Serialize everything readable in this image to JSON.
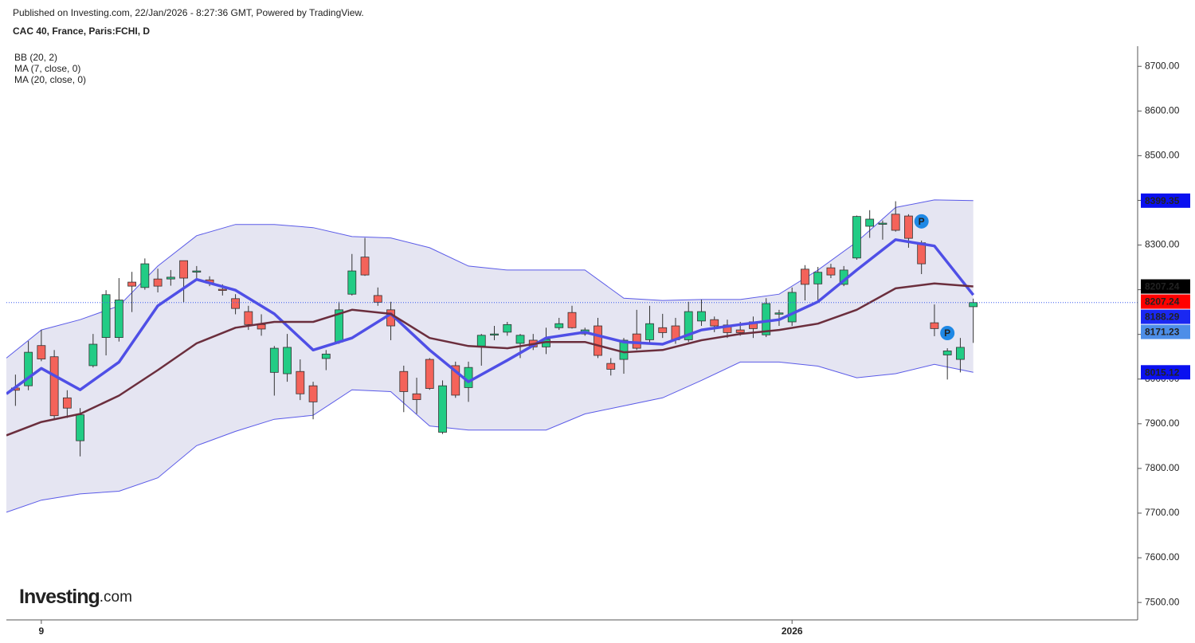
{
  "chart_data": {
    "type": "candlestick",
    "subtitle": "Published on Investing.com, 22/Jan/2026 - 8:27:36 GMT, Powered by TradingView.",
    "title": "CAC 40, France, Paris:FCHI, D",
    "up_color": "#22cc85",
    "down_color": "#f4635a",
    "xlim": [
      -0.7,
      86.7
    ],
    "ylim": [
      7461,
      8745
    ],
    "yticks": [
      {
        "value": 7500,
        "label": "7500.00"
      },
      {
        "value": 7600,
        "label": "7600.00"
      },
      {
        "value": 7700,
        "label": "7700.00"
      },
      {
        "value": 7800,
        "label": "7800.00"
      },
      {
        "value": 7900,
        "label": "7900.00"
      },
      {
        "value": 8000,
        "label": "8000.00"
      },
      {
        "value": 8100,
        "label": "8100.00"
      },
      {
        "value": 8200,
        "label": "8200.00"
      },
      {
        "value": 8300,
        "label": "8300.00"
      },
      {
        "value": 8400,
        "label": "8400.00"
      },
      {
        "value": 8500,
        "label": "8500.00"
      },
      {
        "value": 8600,
        "label": "8600.00"
      },
      {
        "value": 8700,
        "label": "8700.00"
      }
    ],
    "xticks": [
      {
        "value": 2,
        "label": "9"
      },
      {
        "value": 60,
        "label": "2026"
      }
    ],
    "open": [
      7980,
      7985,
      8075,
      8050,
      7958,
      7862,
      8030,
      8093,
      8093,
      8217,
      8205,
      8224,
      8224,
      8265,
      8240,
      8222,
      8201,
      8180,
      8151,
      8122,
      8015,
      8012,
      8017,
      7985,
      8046,
      8083,
      8190,
      8273,
      8187,
      8155,
      8017,
      7967,
      8044,
      7881,
      8030,
      7981,
      8074,
      8100,
      8105,
      8080,
      8087,
      8072,
      8115,
      8149,
      8101,
      8119,
      8035,
      8044,
      8101,
      8088,
      8115,
      8119,
      8088,
      8130,
      8133,
      8121,
      8110,
      8128,
      8099,
      8146,
      8128,
      8246,
      8213,
      8249,
      8212,
      8271,
      8342,
      8347,
      8369,
      8365,
      8305,
      8126,
      8054,
      8044,
      8162
    ],
    "high": [
      8010,
      8085,
      8110,
      8065,
      7975,
      7935,
      8101,
      8199,
      8226,
      8240,
      8270,
      8247,
      8244,
      8265,
      8253,
      8230,
      8212,
      8190,
      8164,
      8145,
      8074,
      8101,
      8044,
      7994,
      8065,
      8173,
      8280,
      8316,
      8205,
      8173,
      8030,
      8003,
      8047,
      7997,
      8039,
      8039,
      8101,
      8119,
      8128,
      8101,
      8101,
      8115,
      8137,
      8164,
      8115,
      8137,
      8047,
      8092,
      8155,
      8164,
      8146,
      8137,
      8173,
      8178,
      8140,
      8133,
      8128,
      8140,
      8181,
      8155,
      8205,
      8255,
      8251,
      8258,
      8253,
      8366,
      8378,
      8355,
      8398,
      8369,
      8310,
      8167,
      8069,
      8092,
      8180
    ],
    "low": [
      7940,
      7975,
      8040,
      7908,
      7913,
      7827,
      8026,
      8053,
      8084,
      8150,
      8200,
      8194,
      8209,
      8172,
      8226,
      8208,
      8187,
      8145,
      8110,
      8097,
      7963,
      7994,
      7953,
      7910,
      8020,
      8079,
      8187,
      8231,
      8164,
      8087,
      7926,
      7922,
      7976,
      7877,
      7958,
      7949,
      8030,
      8087,
      8097,
      8047,
      8065,
      8056,
      8110,
      8113,
      8097,
      8047,
      8008,
      8012,
      8065,
      8080,
      8092,
      8079,
      8083,
      8119,
      8105,
      8092,
      8097,
      8092,
      8094,
      8119,
      8119,
      8176,
      8173,
      8226,
      8208,
      8267,
      8316,
      8312,
      8330,
      8294,
      8235,
      8096,
      7999,
      8015,
      8081
    ],
    "close": [
      7975,
      8060,
      8045,
      7918,
      7935,
      7920,
      8078,
      8189,
      8177,
      8208,
      8258,
      8208,
      8228,
      8226,
      8242,
      8215,
      8199,
      8158,
      8122,
      8112,
      8069,
      8071,
      7967,
      7949,
      8056,
      8155,
      8242,
      8233,
      8172,
      8119,
      7972,
      7954,
      7979,
      7985,
      7964,
      8026,
      8098,
      8101,
      8122,
      8098,
      8072,
      8089,
      8124,
      8115,
      8110,
      8053,
      8022,
      8087,
      8069,
      8124,
      8104,
      8088,
      8151,
      8151,
      8119,
      8104,
      8104,
      8113,
      8169,
      8148,
      8194,
      8212,
      8239,
      8233,
      8244,
      8364,
      8358,
      8349,
      8333,
      8315,
      8258,
      8113,
      8063,
      8071,
      8171.23
    ],
    "line_x": [
      -0.7,
      2,
      5,
      8,
      11,
      14,
      17,
      20,
      23,
      26,
      29,
      32,
      35,
      38,
      41,
      44,
      47,
      50,
      53,
      56,
      59,
      62,
      65,
      68,
      71,
      74
    ],
    "series": [
      {
        "name": "BB (20, 2)",
        "color": "#5a5ae8",
        "fill": "#e5e5f2",
        "upper": [
          8047,
          8110,
          8133,
          8164,
          8253,
          8321,
          8346,
          8346,
          8339,
          8319,
          8316,
          8294,
          8253,
          8244,
          8244,
          8244,
          8181,
          8176,
          8178,
          8178,
          8190,
          8244,
          8307,
          8384,
          8401,
          8399.35
        ],
        "lower": [
          7702,
          7729,
          7743,
          7749,
          7779,
          7851,
          7883,
          7910,
          7919,
          7976,
          7972,
          7895,
          7886,
          7886,
          7886,
          7922,
          7940,
          7958,
          7997,
          8038,
          8038,
          8029,
          8003,
          8012,
          8033,
          8015.12
        ]
      },
      {
        "name": "MA (7, close, 0)",
        "color": "#4f4fe6",
        "width": 3.5,
        "values": [
          7967,
          8024,
          7976,
          8038,
          8164,
          8223,
          8199,
          8146,
          8065,
          8092,
          8146,
          8065,
          7994,
          8042,
          8092,
          8105,
          8083,
          8078,
          8110,
          8122,
          8133,
          8173,
          8244,
          8312,
          8298,
          8188.29
        ]
      },
      {
        "name": "MA (20, close, 0)",
        "color": "#6b2e3d",
        "width": 2.5,
        "values": [
          7874,
          7904,
          7922,
          7963,
          8020,
          8080,
          8115,
          8128,
          8128,
          8155,
          8146,
          8092,
          8074,
          8069,
          8083,
          8083,
          8060,
          8065,
          8087,
          8101,
          8110,
          8124,
          8155,
          8203,
          8214,
          8207.24
        ]
      }
    ],
    "price_labels": [
      {
        "value": 8399.35,
        "color": "#0a10f0"
      },
      {
        "value": 8207.24,
        "color": "#000000"
      },
      {
        "value": 8207.24,
        "color": "#ff0000"
      },
      {
        "value": 8188.29,
        "color": "#1a28f2"
      },
      {
        "value": 8171.23,
        "color": "#4d8ee8"
      },
      {
        "value": 8015.12,
        "color": "#0a10f0"
      }
    ],
    "markers": [
      {
        "text": "P",
        "x": 70,
        "y": 8353
      },
      {
        "text": "P",
        "x": 72,
        "y": 8103
      }
    ],
    "logo": {
      "brand": "Investing",
      "suffix": ".com"
    }
  }
}
